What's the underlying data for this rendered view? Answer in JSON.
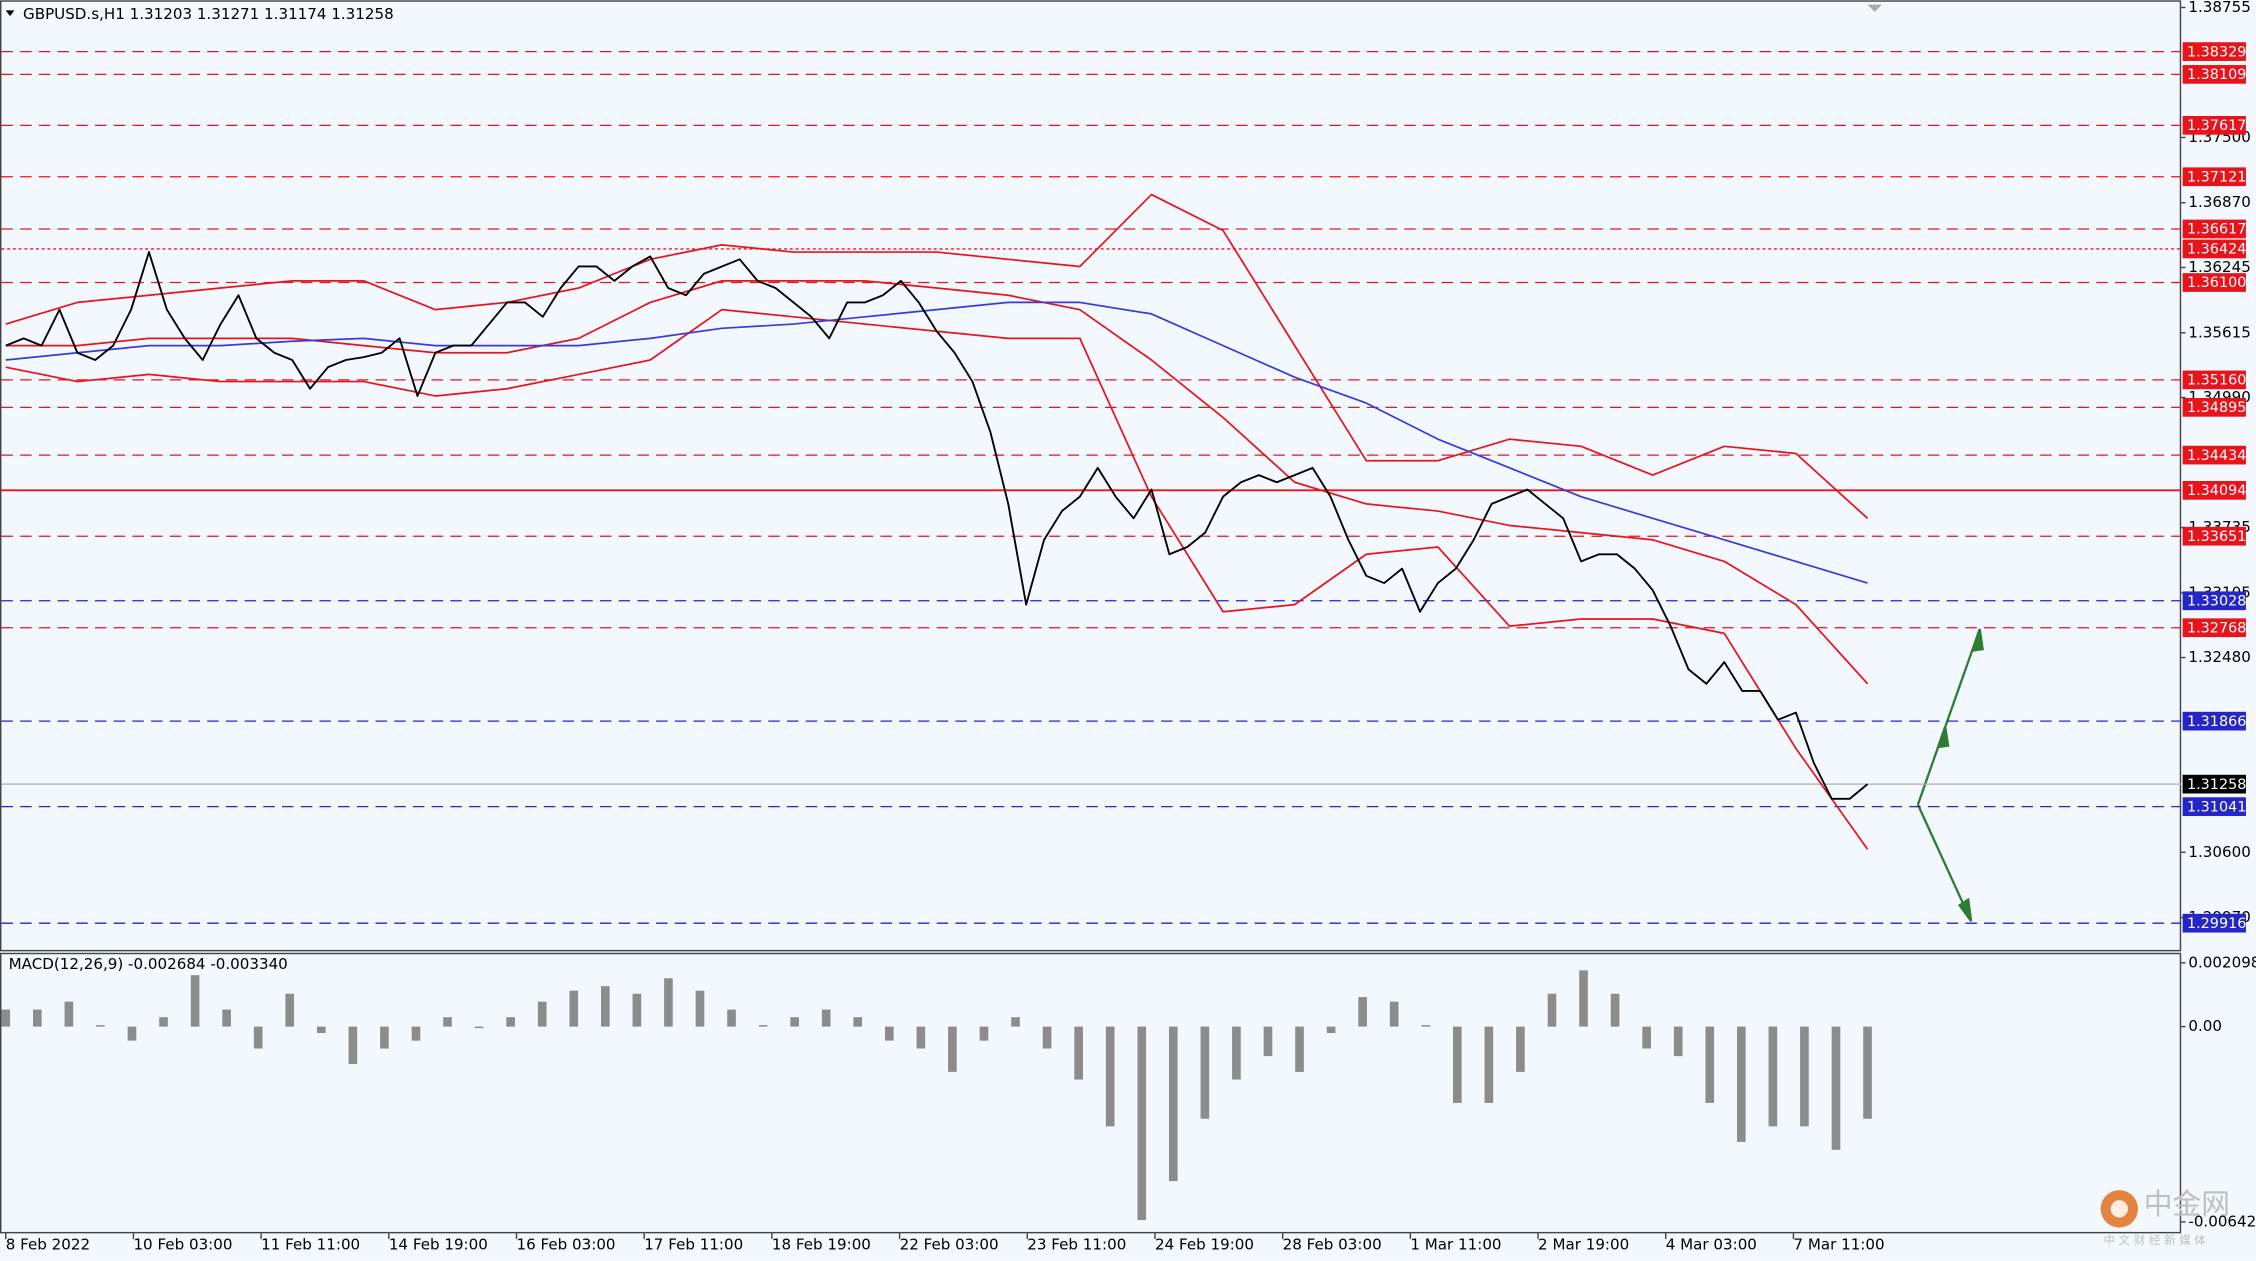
{
  "chart_data": {
    "type": "line",
    "title": "GBPUSD.s,H1  1.31203 1.31271 1.31174 1.31258",
    "ylim": [
      1.29658,
      1.38824
    ],
    "yticks": [
      1.38755,
      {
        "value": 1.375,
        "label": "1.37500"
      },
      {
        "value": 1.3687,
        "label": "1.36870"
      },
      1.36245,
      1.35615,
      {
        "value": 1.3499,
        "label": "1.34990"
      },
      1.33735,
      1.33105,
      {
        "value": 1.3248,
        "label": "1.32480"
      },
      {
        "value": 1.306,
        "label": "1.30600"
      },
      {
        "value": 1.2997,
        "label": "1.29970"
      }
    ],
    "x_labels": [
      "8 Feb 2022",
      "10 Feb 03:00",
      "11 Feb 11:00",
      "14 Feb 19:00",
      "16 Feb 03:00",
      "17 Feb 11:00",
      "18 Feb 19:00",
      "22 Feb 03:00",
      "23 Feb 11:00",
      "24 Feb 19:00",
      "28 Feb 03:00",
      "1 Mar 11:00",
      "2 Mar 19:00",
      "4 Mar 03:00",
      "7 Mar 11:00"
    ],
    "series": [
      {
        "color": "#000000",
        "values": [
          1.35491,
          1.35561,
          1.35491,
          1.35838,
          1.35422,
          1.35352,
          1.35491,
          1.35838,
          1.36394,
          1.35838,
          1.35561,
          1.35352,
          1.35699,
          1.35977,
          1.35561,
          1.35422,
          1.35352,
          1.35075,
          1.35283,
          1.35352,
          1.3538,
          1.35422,
          1.35561,
          1.35005,
          1.35422,
          1.35491,
          1.35491,
          1.35699,
          1.35908,
          1.35908,
          1.35769,
          1.36047,
          1.36255,
          1.36255,
          1.36116,
          1.36255,
          1.36352,
          1.36047,
          1.35977,
          1.36185,
          1.36255,
          1.36324,
          1.36116,
          1.36047,
          1.35908,
          1.35769,
          1.35561,
          1.35908,
          1.35908,
          1.35977,
          1.36116,
          1.35908,
          1.3563,
          1.35422,
          1.35144,
          1.34658,
          1.33963,
          1.32991,
          1.33616,
          1.33894,
          1.34033,
          1.34311,
          1.34033,
          1.33824,
          1.34102,
          1.33477,
          1.33547,
          1.33686,
          1.34033,
          1.34172,
          1.34241,
          1.34172,
          1.34241,
          1.34311,
          1.34033,
          1.33616,
          1.33269,
          1.33199,
          1.33338,
          1.32922,
          1.33199,
          1.33338,
          1.33616,
          1.33963,
          1.34033,
          1.34102,
          1.33963,
          1.33824,
          1.33408,
          1.33477,
          1.33477,
          1.33338,
          1.3313,
          1.32783,
          1.32366,
          1.32227,
          1.32436,
          1.32158,
          1.32158,
          1.3188,
          1.31949,
          1.31463,
          1.31116,
          1.31116,
          1.31258
        ]
      }
    ],
    "overlays": [
      {
        "color": "#e8141b",
        "values": [
          1.35699,
          1.35908,
          1.35977,
          1.36047,
          1.36116,
          1.36116,
          1.35838,
          1.35908,
          1.36047,
          1.36324,
          1.36463,
          1.36394,
          1.36394,
          1.36394,
          1.36324,
          1.36255,
          1.36949,
          1.36602,
          1.35491,
          1.3438,
          1.3438,
          1.34588,
          1.34519,
          1.34241,
          1.34519,
          1.3445,
          1.33824
        ]
      },
      {
        "color": "#e8141b",
        "values": [
          1.35491,
          1.35491,
          1.35561,
          1.35561,
          1.35561,
          1.35491,
          1.35422,
          1.35422,
          1.35561,
          1.35908,
          1.36116,
          1.36116,
          1.36116,
          1.36047,
          1.35977,
          1.35838,
          1.35352,
          1.34797,
          1.34172,
          1.33963,
          1.33894,
          1.33755,
          1.33686,
          1.33616,
          1.33408,
          1.32991,
          1.32227
        ]
      },
      {
        "color": "#e8141b",
        "values": [
          1.35283,
          1.35144,
          1.35213,
          1.35144,
          1.35144,
          1.35144,
          1.35005,
          1.35075,
          1.35213,
          1.35352,
          1.35838,
          1.35769,
          1.35699,
          1.3563,
          1.35561,
          1.35561,
          1.34033,
          1.32922,
          1.32991,
          1.33477,
          1.33547,
          1.32783,
          1.32852,
          1.32852,
          1.32713,
          1.31602,
          1.3063
        ]
      },
      {
        "color": "#3a3ad8",
        "values": [
          1.35352,
          1.35422,
          1.35491,
          1.35491,
          1.35533,
          1.35561,
          1.35491,
          1.35491,
          1.35491,
          1.35561,
          1.35658,
          1.35699,
          1.35769,
          1.35838,
          1.35908,
          1.35908,
          1.35797,
          1.35491,
          1.35186,
          1.34936,
          1.34588,
          1.34311,
          1.34033,
          1.33824,
          1.33616,
          1.33408,
          1.33199
        ]
      }
    ],
    "levels": [
      {
        "value": 1.38329,
        "color": "#e8141b",
        "style": "dashed"
      },
      {
        "value": 1.38109,
        "color": "#e8141b",
        "style": "dashed"
      },
      {
        "value": 1.37617,
        "color": "#e8141b",
        "style": "dashed"
      },
      {
        "value": 1.37121,
        "color": "#e8141b",
        "style": "dashed"
      },
      {
        "value": 1.36617,
        "color": "#e8141b",
        "style": "dashed"
      },
      {
        "value": 1.36424,
        "color": "#e8141b",
        "style": "dotted"
      },
      {
        "value": 1.361,
        "label": "1.36100",
        "color": "#e8141b",
        "style": "dashed"
      },
      {
        "value": 1.3516,
        "label": "1.35160",
        "color": "#e8141b",
        "style": "dashed"
      },
      {
        "value": 1.34895,
        "color": "#e8141b",
        "style": "dashed"
      },
      {
        "value": 1.34434,
        "color": "#e8141b",
        "style": "dashed"
      },
      {
        "value": 1.34094,
        "color": "#e8141b",
        "style": "solid"
      },
      {
        "value": 1.33651,
        "color": "#e8141b",
        "style": "dashed"
      },
      {
        "value": 1.33028,
        "color": "#2525c8",
        "style": "dashed"
      },
      {
        "value": 1.32768,
        "color": "#e8141b",
        "style": "dashed"
      },
      {
        "value": 1.31866,
        "color": "#2525c8",
        "style": "dashed"
      },
      {
        "value": 1.31258,
        "color": "#000000",
        "style": "current"
      },
      {
        "value": 1.31041,
        "color": "#2525c8",
        "style": "dashed"
      },
      {
        "value": 1.29916,
        "color": "#2525c8",
        "style": "dashed"
      }
    ],
    "macd": {
      "label": "MACD(12,26,9) -0.002684 -0.003340",
      "ylim": [
        -0.00675,
        0.00238
      ],
      "yticks": [
        0.002098,
        {
          "value": 0,
          "label": "0.00"
        },
        -0.006421
      ],
      "color": "#8c8c8c",
      "values": [
        0.00056,
        0.00056,
        0.00082,
        5e-05,
        -0.00046,
        0.00031,
        0.00169,
        0.00056,
        -0.00072,
        0.00108,
        -0.00021,
        -0.00123,
        -0.00072,
        -0.00046,
        0.00031,
        -5e-05,
        0.00031,
        0.00082,
        0.00118,
        0.00133,
        0.00108,
        0.00159,
        0.00118,
        0.00056,
        5e-05,
        0.00031,
        0.00056,
        0.00031,
        -0.00046,
        -0.00072,
        -0.00149,
        -0.00046,
        0.00031,
        -0.00072,
        -0.00174,
        -0.00328,
        -0.00636,
        -0.00508,
        -0.00303,
        -0.00174,
        -0.00097,
        -0.00149,
        -0.00021,
        0.00097,
        0.00082,
        5e-05,
        -0.00251,
        -0.00251,
        -0.00149,
        0.00108,
        0.00185,
        0.00108,
        -0.00072,
        -0.00097,
        -0.00251,
        -0.00379,
        -0.00328,
        -0.00328,
        -0.00405,
        -0.00303
      ]
    },
    "watermark": {
      "name": "中金网",
      "subtitle": "中 文 财 经 新 媒 体"
    }
  }
}
